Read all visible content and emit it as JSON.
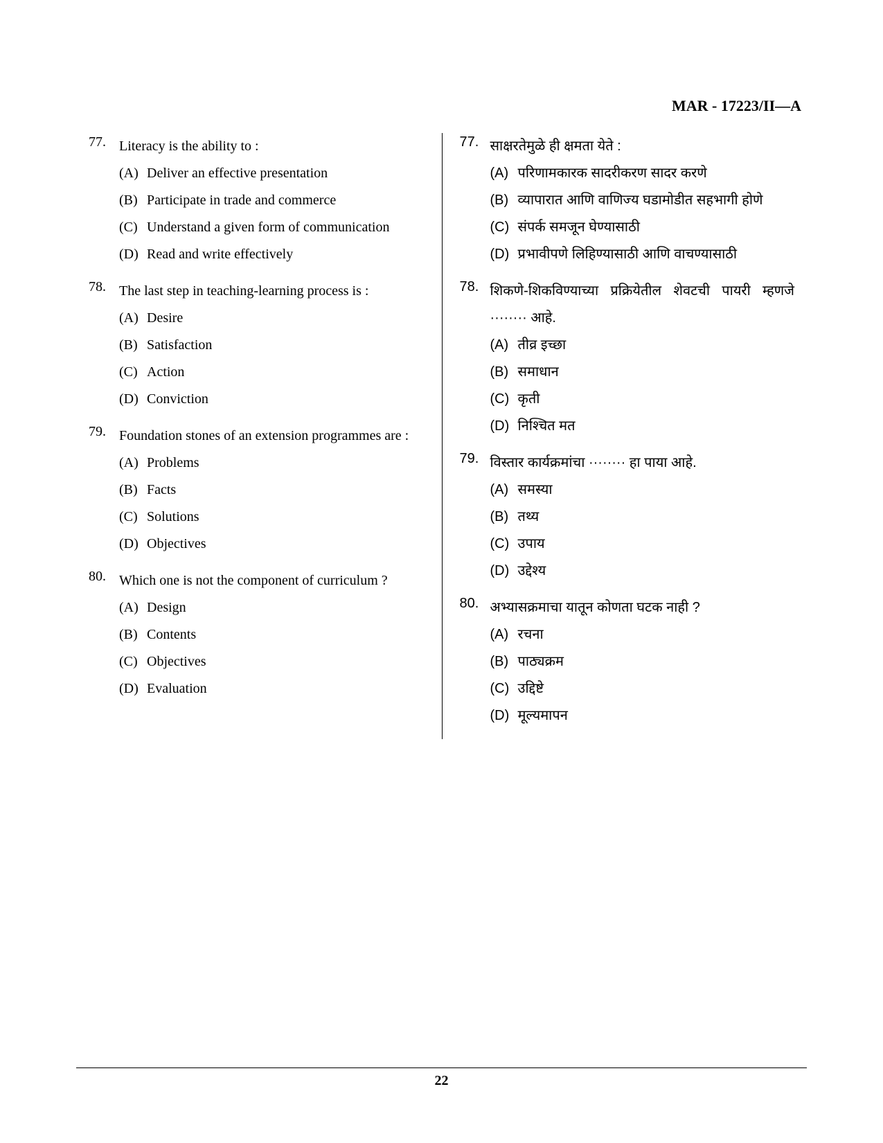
{
  "header": "MAR - 17223/II—A",
  "pageNumber": "22",
  "leftColumn": [
    {
      "number": "77.",
      "text": "Literacy is the ability to :",
      "options": [
        {
          "label": "(A)",
          "text": "Deliver an effective presentation"
        },
        {
          "label": "(B)",
          "text": "Participate in trade and commerce"
        },
        {
          "label": "(C)",
          "text": "Understand a given form of communication"
        },
        {
          "label": "(D)",
          "text": "Read and write effectively"
        }
      ]
    },
    {
      "number": "78.",
      "text": "The last step in teaching-learning process is :",
      "options": [
        {
          "label": "(A)",
          "text": "Desire"
        },
        {
          "label": "(B)",
          "text": "Satisfaction"
        },
        {
          "label": "(C)",
          "text": "Action"
        },
        {
          "label": "(D)",
          "text": "Conviction"
        }
      ]
    },
    {
      "number": "79.",
      "text": "Foundation stones of an extension programmes are :",
      "options": [
        {
          "label": "(A)",
          "text": "Problems"
        },
        {
          "label": "(B)",
          "text": "Facts"
        },
        {
          "label": "(C)",
          "text": "Solutions"
        },
        {
          "label": "(D)",
          "text": "Objectives"
        }
      ]
    },
    {
      "number": "80.",
      "text": "Which one is not the component of curriculum ?",
      "options": [
        {
          "label": "(A)",
          "text": "Design"
        },
        {
          "label": "(B)",
          "text": "Contents"
        },
        {
          "label": "(C)",
          "text": "Objectives"
        },
        {
          "label": "(D)",
          "text": "Evaluation"
        }
      ]
    }
  ],
  "rightColumn": [
    {
      "number": "77.",
      "text": "साक्षरतेमुळे ही क्षमता येते :",
      "options": [
        {
          "label": "(A)",
          "text": "परिणामकारक सादरीकरण सादर करणे"
        },
        {
          "label": "(B)",
          "text": "व्यापारात आणि वाणिज्य घडामोडीत सहभागी होणे"
        },
        {
          "label": "(C)",
          "text": "संपर्क समजून घेण्यासाठी"
        },
        {
          "label": "(D)",
          "text": "प्रभावीपणे लिहिण्यासाठी आणि वाचण्यासाठी"
        }
      ]
    },
    {
      "number": "78.",
      "text": "शिकणे-शिकविण्याच्या प्रक्रियेतील शेवटची पायरी म्हणजे ········ आहे.",
      "options": [
        {
          "label": "(A)",
          "text": "तीव्र इच्छा"
        },
        {
          "label": "(B)",
          "text": "समाधान"
        },
        {
          "label": "(C)",
          "text": "कृती"
        },
        {
          "label": "(D)",
          "text": "निश्चित मत"
        }
      ]
    },
    {
      "number": "79.",
      "text": "विस्तार कार्यक्रमांचा ········ हा पाया आहे.",
      "options": [
        {
          "label": "(A)",
          "text": "समस्या"
        },
        {
          "label": "(B)",
          "text": "तथ्य"
        },
        {
          "label": "(C)",
          "text": "उपाय"
        },
        {
          "label": "(D)",
          "text": "उद्देश्य"
        }
      ]
    },
    {
      "number": "80.",
      "text": "अभ्यासक्रमाचा यातून कोणता घटक नाही ?",
      "options": [
        {
          "label": "(A)",
          "text": "रचना"
        },
        {
          "label": "(B)",
          "text": "पाठ्यक्रम"
        },
        {
          "label": "(C)",
          "text": "उद्दिष्टे"
        },
        {
          "label": "(D)",
          "text": "मूल्यमापन"
        }
      ]
    }
  ]
}
